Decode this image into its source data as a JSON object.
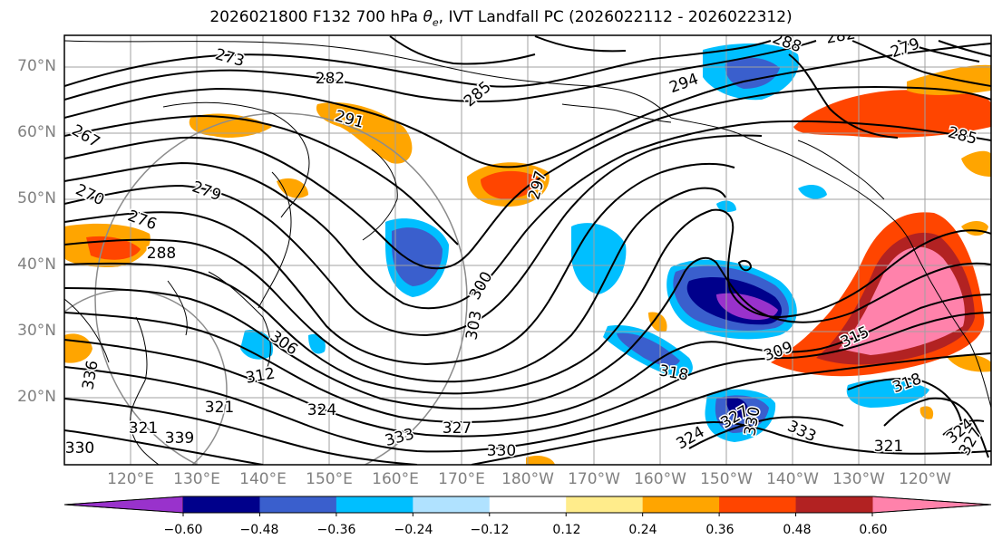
{
  "title": {
    "main": "2026021800 F132 700 hPa ",
    "theta": "θ",
    "theta_sub": "e",
    "tail": ", IVT Landfall PC (2026022112 - 2026022312)"
  },
  "lat_labels": [
    "70°N",
    "60°N",
    "50°N",
    "40°N",
    "30°N",
    "20°N"
  ],
  "lon_labels": [
    "120°E",
    "130°E",
    "140°E",
    "150°E",
    "160°E",
    "170°E",
    "180°W",
    "170°W",
    "160°W",
    "150°W",
    "140°W",
    "130°W",
    "120°W"
  ],
  "colorbar": {
    "tick_labels": [
      "−0.60",
      "−0.48",
      "−0.36",
      "−0.24",
      "−0.12",
      "0.12",
      "0.24",
      "0.36",
      "0.48",
      "0.60"
    ],
    "colors": [
      "#9932cc",
      "#00008b",
      "#3a5fcd",
      "#00bfff",
      "#b0e2ff",
      "#ffffff",
      "#ffec8b",
      "#ffa500",
      "#ff4500",
      "#b22222",
      "#ff82ab"
    ]
  },
  "contour_labels": [
    {
      "text": "273"
    },
    {
      "text": "282"
    },
    {
      "text": "282"
    },
    {
      "text": "279"
    },
    {
      "text": "288"
    },
    {
      "text": "294"
    },
    {
      "text": "285"
    },
    {
      "text": "267"
    },
    {
      "text": "291"
    },
    {
      "text": "285"
    },
    {
      "text": "270"
    },
    {
      "text": "279"
    },
    {
      "text": "276"
    },
    {
      "text": "297"
    },
    {
      "text": "288"
    },
    {
      "text": "300"
    },
    {
      "text": "303"
    },
    {
      "text": "306"
    },
    {
      "text": "309"
    },
    {
      "text": "315"
    },
    {
      "text": "318"
    },
    {
      "text": "312"
    },
    {
      "text": "321"
    },
    {
      "text": "324"
    },
    {
      "text": "327"
    },
    {
      "text": "333"
    },
    {
      "text": "330"
    },
    {
      "text": "333"
    },
    {
      "text": "324"
    },
    {
      "text": "327"
    },
    {
      "text": "330"
    },
    {
      "text": "318"
    },
    {
      "text": "321"
    },
    {
      "text": "321"
    },
    {
      "text": "324"
    },
    {
      "text": "327"
    },
    {
      "text": "339"
    },
    {
      "text": "330"
    },
    {
      "text": "336"
    }
  ]
}
